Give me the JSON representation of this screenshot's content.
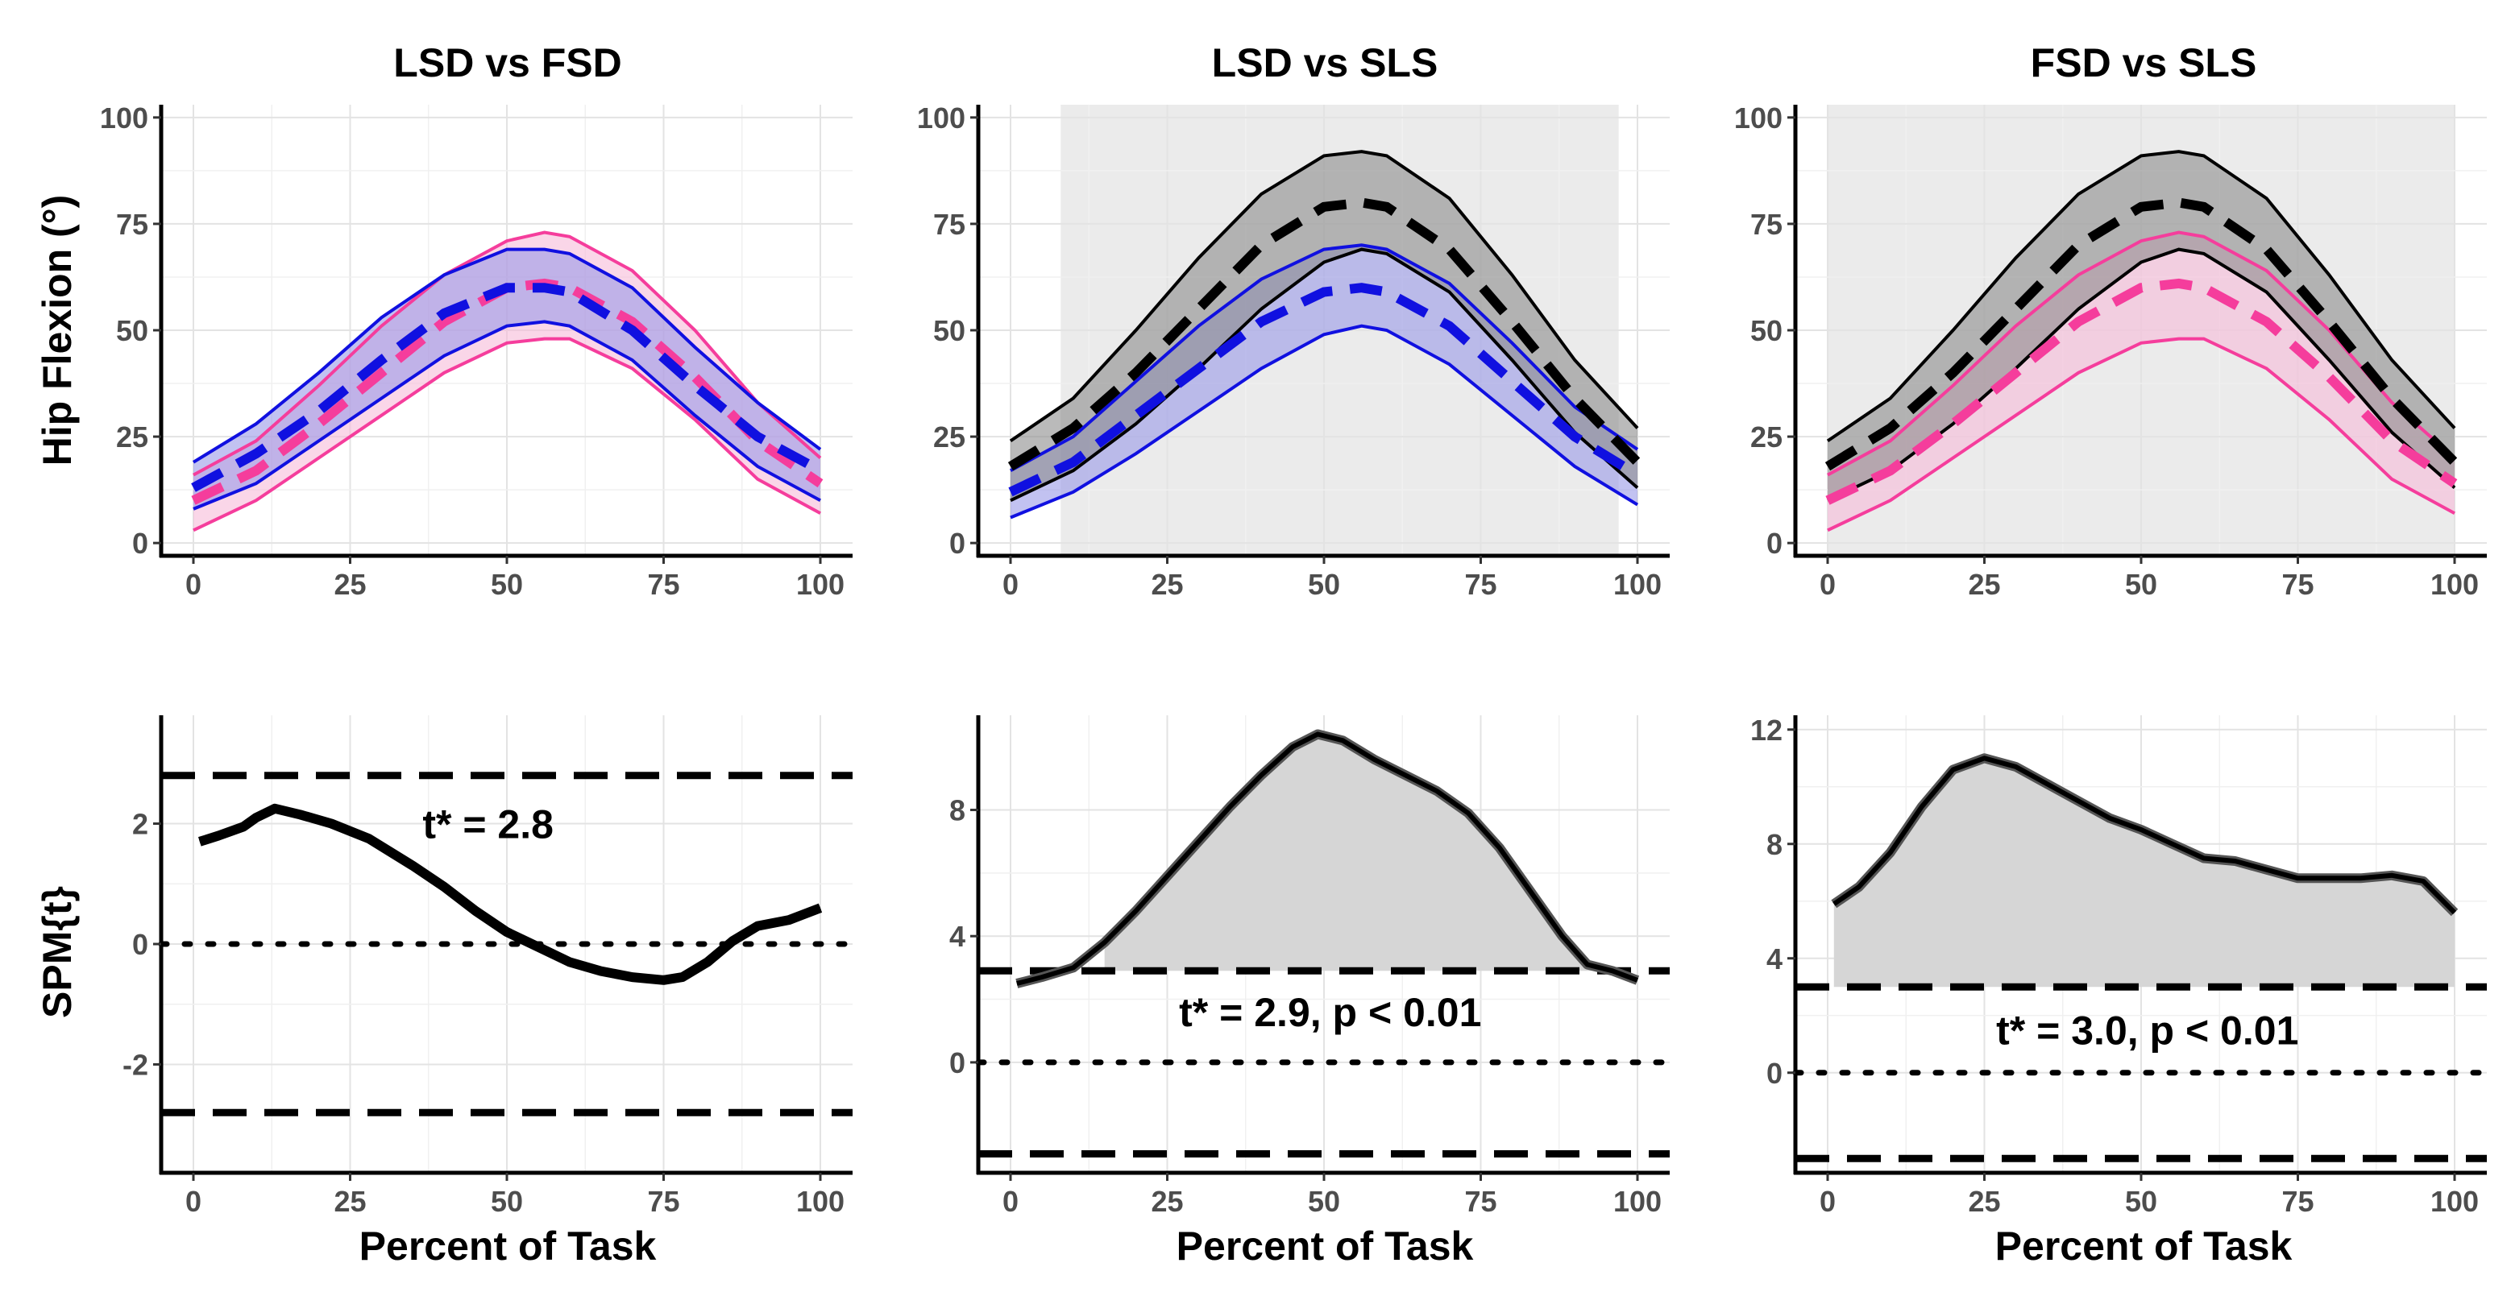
{
  "chart_data": [
    {
      "type": "line",
      "title": "LSD vs FSD",
      "ylabel": "Hip Flexion (°)",
      "xlabel": "",
      "xlim": [
        0,
        100
      ],
      "ylim": [
        -3,
        103
      ],
      "x_ticks": [
        0,
        25,
        50,
        75,
        100
      ],
      "y_ticks": [
        0,
        25,
        50,
        75,
        100
      ],
      "x_tick_labels": [
        "0",
        "25",
        "50",
        "75",
        "100"
      ],
      "y_tick_labels": [
        "0",
        "25",
        "50",
        "75",
        "100"
      ],
      "shade_x": null,
      "series": [
        {
          "name": "LSD",
          "color": "#f53d9c",
          "fill": "#f6bbd8",
          "x": [
            0,
            10,
            20,
            30,
            40,
            50,
            56,
            60,
            70,
            80,
            90,
            100
          ],
          "mean": [
            10,
            17,
            28,
            40,
            52,
            60,
            61,
            60,
            52,
            39,
            24,
            14
          ],
          "upper": [
            16,
            24,
            37,
            51,
            63,
            71,
            73,
            72,
            64,
            50,
            33,
            20
          ],
          "lower": [
            3,
            10,
            20,
            30,
            40,
            47,
            48,
            48,
            41,
            29,
            15,
            7
          ]
        },
        {
          "name": "FSD",
          "color": "#1010e0",
          "fill": "#9a9ae8",
          "x": [
            0,
            10,
            20,
            30,
            40,
            50,
            56,
            60,
            70,
            80,
            90,
            100
          ],
          "mean": [
            13,
            21,
            31,
            43,
            54,
            60,
            60,
            59,
            50,
            37,
            25,
            17
          ],
          "upper": [
            19,
            28,
            40,
            53,
            63,
            69,
            69,
            68,
            60,
            46,
            33,
            22
          ],
          "lower": [
            8,
            14,
            24,
            34,
            44,
            51,
            52,
            51,
            43,
            30,
            18,
            10
          ]
        }
      ]
    },
    {
      "type": "line",
      "title": "LSD vs SLS",
      "ylabel": "",
      "xlabel": "",
      "xlim": [
        0,
        100
      ],
      "ylim": [
        -3,
        103
      ],
      "x_ticks": [
        0,
        25,
        50,
        75,
        100
      ],
      "y_ticks": [
        0,
        25,
        50,
        75,
        100
      ],
      "x_tick_labels": [
        "0",
        "25",
        "50",
        "75",
        "100"
      ],
      "y_tick_labels": [
        "0",
        "25",
        "50",
        "75",
        "100"
      ],
      "shade_x": [
        8,
        97
      ],
      "series": [
        {
          "name": "LSD",
          "color": "#1010e0",
          "fill": "#9a9ae8",
          "x": [
            0,
            10,
            20,
            30,
            40,
            50,
            56,
            60,
            70,
            80,
            90,
            100
          ],
          "mean": [
            12,
            19,
            30,
            41,
            52,
            59,
            60,
            59,
            51,
            38,
            25,
            16
          ],
          "upper": [
            17,
            25,
            38,
            51,
            62,
            69,
            70,
            69,
            61,
            47,
            32,
            22
          ],
          "lower": [
            6,
            12,
            21,
            31,
            41,
            49,
            51,
            50,
            42,
            30,
            18,
            9
          ]
        },
        {
          "name": "SLS",
          "color": "#000000",
          "fill": "#8c8c8c",
          "x": [
            0,
            10,
            20,
            30,
            40,
            50,
            56,
            60,
            70,
            80,
            90,
            100
          ],
          "mean": [
            18,
            27,
            40,
            55,
            70,
            79,
            80,
            79,
            69,
            52,
            34,
            19
          ],
          "upper": [
            24,
            34,
            50,
            67,
            82,
            91,
            92,
            91,
            81,
            63,
            43,
            27
          ],
          "lower": [
            10,
            17,
            28,
            41,
            55,
            66,
            69,
            68,
            59,
            43,
            26,
            13
          ]
        }
      ]
    },
    {
      "type": "line",
      "title": "FSD vs SLS",
      "ylabel": "",
      "xlabel": "",
      "xlim": [
        0,
        100
      ],
      "ylim": [
        -3,
        103
      ],
      "x_ticks": [
        0,
        25,
        50,
        75,
        100
      ],
      "y_ticks": [
        0,
        25,
        50,
        75,
        100
      ],
      "x_tick_labels": [
        "0",
        "25",
        "50",
        "75",
        "100"
      ],
      "y_tick_labels": [
        "0",
        "25",
        "50",
        "75",
        "100"
      ],
      "shade_x": [
        0,
        100
      ],
      "series": [
        {
          "name": "FSD",
          "color": "#f53d9c",
          "fill": "#f6bbd8",
          "x": [
            0,
            10,
            20,
            30,
            40,
            50,
            56,
            60,
            70,
            80,
            90,
            100
          ],
          "mean": [
            10,
            17,
            28,
            40,
            52,
            60,
            61,
            60,
            52,
            39,
            24,
            14
          ],
          "upper": [
            16,
            24,
            37,
            51,
            63,
            71,
            73,
            72,
            64,
            50,
            33,
            20
          ],
          "lower": [
            3,
            10,
            20,
            30,
            40,
            47,
            48,
            48,
            41,
            29,
            15,
            7
          ]
        },
        {
          "name": "SLS",
          "color": "#000000",
          "fill": "#8c8c8c",
          "x": [
            0,
            10,
            20,
            30,
            40,
            50,
            56,
            60,
            70,
            80,
            90,
            100
          ],
          "mean": [
            18,
            27,
            40,
            55,
            70,
            79,
            80,
            79,
            69,
            52,
            34,
            19
          ],
          "upper": [
            24,
            34,
            50,
            67,
            82,
            91,
            92,
            91,
            81,
            63,
            43,
            27
          ],
          "lower": [
            10,
            17,
            28,
            41,
            55,
            66,
            69,
            68,
            59,
            43,
            26,
            13
          ]
        }
      ]
    },
    {
      "type": "line",
      "title": "",
      "ylabel": "SPM{t}",
      "xlabel": "Percent of Task",
      "xlim": [
        0,
        100
      ],
      "ylim": [
        -3.8,
        3.8
      ],
      "x_ticks": [
        0,
        25,
        50,
        75,
        100
      ],
      "y_ticks": [
        -2,
        0,
        2
      ],
      "x_tick_labels": [
        "0",
        "25",
        "50",
        "75",
        "100"
      ],
      "y_tick_labels": [
        "-2",
        "0",
        "2"
      ],
      "threshold": 2.8,
      "annotation": {
        "text": "t* = 2.8",
        "x": 47,
        "y": 2.0
      },
      "spm": {
        "x": [
          1,
          4,
          8,
          10,
          13,
          17,
          22,
          28,
          35,
          40,
          45,
          50,
          55,
          60,
          65,
          70,
          75,
          78,
          82,
          86,
          90,
          95,
          100
        ],
        "y": [
          1.7,
          1.8,
          1.95,
          2.1,
          2.25,
          2.15,
          2.0,
          1.75,
          1.3,
          0.95,
          0.55,
          0.2,
          -0.05,
          -0.3,
          -0.45,
          -0.55,
          -0.6,
          -0.55,
          -0.3,
          0.05,
          0.3,
          0.4,
          0.6
        ]
      },
      "shade": null
    },
    {
      "type": "line",
      "title": "",
      "ylabel": "",
      "xlabel": "Percent of Task",
      "xlim": [
        0,
        100
      ],
      "ylim": [
        -3.5,
        11
      ],
      "x_ticks": [
        0,
        25,
        50,
        75,
        100
      ],
      "y_ticks": [
        0,
        4,
        8
      ],
      "x_tick_labels": [
        "0",
        "25",
        "50",
        "75",
        "100"
      ],
      "y_tick_labels": [
        "0",
        "4",
        "8"
      ],
      "threshold": 2.9,
      "annotation": {
        "text": "t* = 2.9, p < 0.01",
        "x": 51,
        "y": 1.6
      },
      "spm": {
        "x": [
          1,
          5,
          10,
          15,
          20,
          25,
          30,
          35,
          40,
          45,
          49,
          53,
          58,
          63,
          68,
          73,
          78,
          83,
          88,
          92,
          96,
          100
        ],
        "y": [
          2.5,
          2.7,
          3.0,
          3.8,
          4.8,
          5.9,
          7.0,
          8.1,
          9.1,
          10.0,
          10.4,
          10.2,
          9.6,
          9.1,
          8.6,
          7.9,
          6.8,
          5.4,
          4.0,
          3.1,
          2.9,
          2.6
        ]
      },
      "shade": {
        "from": 12,
        "to": 96
      }
    },
    {
      "type": "line",
      "title": "",
      "ylabel": "",
      "xlabel": "Percent of Task",
      "xlim": [
        0,
        100
      ],
      "ylim": [
        -3.5,
        12.5
      ],
      "x_ticks": [
        0,
        25,
        50,
        75,
        100
      ],
      "y_ticks": [
        0,
        4,
        8,
        12
      ],
      "x_tick_labels": [
        "0",
        "25",
        "50",
        "75",
        "100"
      ],
      "y_tick_labels": [
        "0",
        "4",
        "8",
        "12"
      ],
      "threshold": 3.0,
      "annotation": {
        "text": "t* = 3.0, p < 0.01",
        "x": 51,
        "y": 1.5
      },
      "spm": {
        "x": [
          1,
          5,
          10,
          15,
          20,
          25,
          30,
          35,
          40,
          45,
          50,
          55,
          60,
          65,
          70,
          75,
          80,
          85,
          90,
          95,
          100
        ],
        "y": [
          5.9,
          6.5,
          7.7,
          9.3,
          10.6,
          11.0,
          10.7,
          10.1,
          9.5,
          8.9,
          8.5,
          8.0,
          7.5,
          7.4,
          7.1,
          6.8,
          6.8,
          6.8,
          6.9,
          6.7,
          5.6
        ]
      },
      "shade": {
        "from": 0,
        "to": 100
      }
    }
  ]
}
